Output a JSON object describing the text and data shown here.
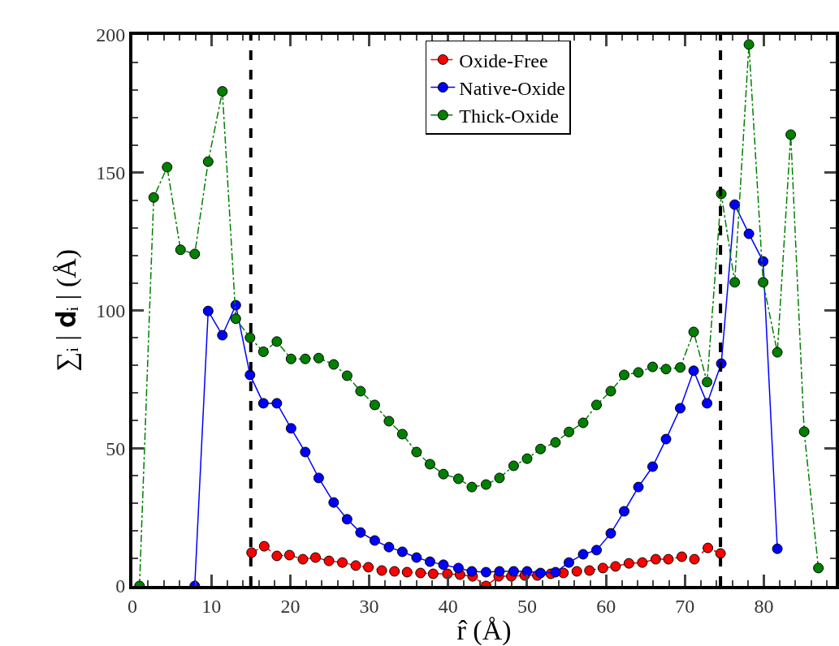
{
  "chart_data": {
    "type": "line",
    "xlabel": "r̂ (Å)",
    "ylabel": "∑ᵢ | 𝐝ᵢ | (Å)",
    "xlim": [
      0,
      89.1
    ],
    "xticks": [
      0,
      10,
      20,
      30,
      40,
      50,
      60,
      70,
      80
    ],
    "ylim": [
      0,
      200
    ],
    "yticks": [
      0,
      50,
      100,
      150,
      200
    ],
    "legend": "top",
    "marker": "circle",
    "series": [
      {
        "name": "Oxide-Free",
        "color": "#ff0000",
        "line_style": "dashed",
        "x": [
          15.1,
          16.7,
          18.3,
          19.9,
          21.6,
          23.2,
          24.9,
          26.6,
          28.3,
          29.9,
          31.6,
          33.2,
          34.8,
          36.5,
          38.1,
          39.9,
          41.5,
          43.1,
          44.8,
          46.4,
          48.0,
          49.7,
          51.3,
          53.0,
          54.6,
          56.3,
          57.9,
          59.6,
          61.2,
          62.9,
          64.6,
          66.3,
          67.9,
          69.6,
          71.2,
          72.9,
          74.5
        ],
        "values": [
          12.1,
          14.4,
          10.9,
          11.2,
          9.7,
          10.3,
          9.1,
          8.5,
          7.4,
          6.8,
          5.6,
          5.3,
          5.0,
          4.7,
          4.4,
          4.4,
          4.1,
          3.5,
          0,
          3.5,
          3.5,
          3.8,
          3.8,
          4.4,
          4.7,
          5.3,
          5.6,
          6.5,
          7.1,
          8.2,
          8.5,
          9.7,
          9.7,
          10.6,
          9.7,
          13.8,
          11.8
        ]
      },
      {
        "name": "Native-Oxide",
        "color": "#0000ff",
        "line_style": "solid",
        "x": [
          7.9,
          9.6,
          11.4,
          13.1,
          14.9,
          16.6,
          18.3,
          20.1,
          21.9,
          23.6,
          25.5,
          27.2,
          28.9,
          30.7,
          32.5,
          34.2,
          36.0,
          37.7,
          39.4,
          41.3,
          43.0,
          44.8,
          46.5,
          48.3,
          50.0,
          51.7,
          53.6,
          55.3,
          57.1,
          58.8,
          60.6,
          62.3,
          64.1,
          65.9,
          67.6,
          69.4,
          71.1,
          72.8,
          74.6,
          76.3,
          78.1,
          79.9,
          81.7
        ],
        "values": [
          0,
          99.8,
          91,
          101.9,
          76.6,
          66.3,
          66.3,
          57.2,
          48.6,
          39.2,
          30.3,
          24.2,
          19.4,
          16.5,
          14.1,
          12.4,
          10.3,
          8.8,
          7.7,
          6.5,
          5.3,
          5.0,
          5.3,
          5.3,
          5.3,
          4.7,
          5.0,
          8.5,
          11.5,
          13.0,
          19.1,
          27.1,
          35.9,
          43.3,
          53.3,
          64.5,
          78.1,
          66.3,
          80.7,
          138.4,
          127.8,
          117.8,
          13.5
        ]
      },
      {
        "name": "Thick-Oxide",
        "color": "#008000",
        "line_style": "dotted",
        "x": [
          0.9,
          2.7,
          4.4,
          6.1,
          7.9,
          9.6,
          11.4,
          13.1,
          14.9,
          16.6,
          18.3,
          20.1,
          21.9,
          23.6,
          25.5,
          27.2,
          28.9,
          30.7,
          32.5,
          34.2,
          36.0,
          37.7,
          39.4,
          41.3,
          43.0,
          44.8,
          46.5,
          48.3,
          50.0,
          51.7,
          53.6,
          55.3,
          57.1,
          58.8,
          60.6,
          62.3,
          64.1,
          65.9,
          67.6,
          69.4,
          71.1,
          72.8,
          74.6,
          76.3,
          78.1,
          79.9,
          81.7,
          83.4,
          85.1,
          86.9
        ],
        "values": [
          0,
          141,
          152,
          122,
          120.5,
          154,
          179.5,
          97,
          90.1,
          85,
          88.7,
          82.4,
          82.4,
          82.7,
          80.4,
          76.3,
          70.7,
          65.7,
          59.8,
          55.1,
          48.6,
          44.2,
          40.6,
          38.9,
          35.9,
          36.8,
          39.2,
          43.6,
          46.2,
          49.7,
          52.1,
          55.9,
          59.2,
          65.7,
          70.7,
          76.6,
          77.5,
          79.5,
          78.7,
          79.3,
          92.2,
          74,
          142.3,
          110.2,
          196.5,
          110.2,
          84.8,
          163.8,
          56,
          6.5
        ]
      }
    ],
    "ref_lines": [
      {
        "axis": "x",
        "value": 15.0,
        "color": "#000000",
        "line_style": "dashed"
      },
      {
        "axis": "x",
        "value": 74.5,
        "color": "#000000",
        "line_style": "dashed"
      }
    ]
  }
}
